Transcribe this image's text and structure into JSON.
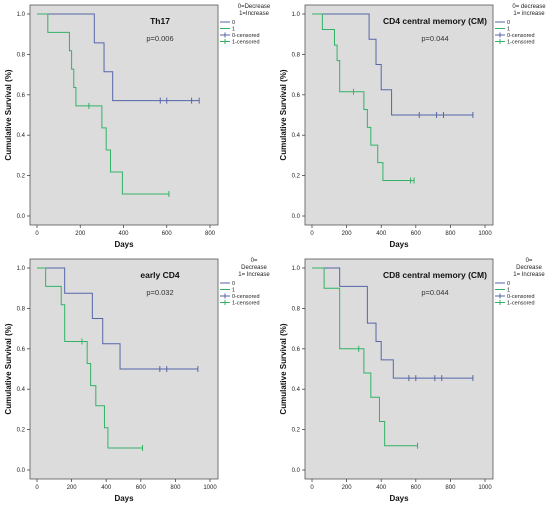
{
  "chart_data": [
    {
      "type": "line",
      "panel": "Th17",
      "title": "Th17",
      "pvalue": "p=0.006",
      "xlabel": "Days",
      "ylabel": "Cumulative Survival (%)",
      "xlim": [
        0,
        800
      ],
      "ylim": [
        0,
        1.0
      ],
      "xticks": [
        "0",
        "200",
        "400",
        "600",
        "800"
      ],
      "yticks": [
        "0.0",
        "0.2",
        "0.4",
        "0.6",
        "0.8",
        "1.0"
      ],
      "legend_title": [
        "0=Decrease",
        "1=Increase"
      ],
      "legend": [
        "0",
        "1",
        "0-censored",
        "1-censored"
      ],
      "series": [
        {
          "name": "0",
          "color": "#5666a8",
          "steps": [
            [
              0,
              1.0
            ],
            [
              265,
              0.857
            ],
            [
              310,
              0.714
            ],
            [
              350,
              0.571
            ],
            [
              750,
              0.571
            ]
          ],
          "censored": [
            [
              570,
              0.571
            ],
            [
              600,
              0.571
            ],
            [
              715,
              0.571
            ],
            [
              750,
              0.571
            ]
          ]
        },
        {
          "name": "1",
          "color": "#33b267",
          "steps": [
            [
              0,
              1.0
            ],
            [
              50,
              0.909
            ],
            [
              150,
              0.818
            ],
            [
              160,
              0.727
            ],
            [
              170,
              0.636
            ],
            [
              180,
              0.545
            ],
            [
              300,
              0.436
            ],
            [
              320,
              0.327
            ],
            [
              340,
              0.218
            ],
            [
              395,
              0.109
            ],
            [
              610,
              0.109
            ]
          ],
          "censored": [
            [
              240,
              0.545
            ],
            [
              610,
              0.109
            ]
          ]
        }
      ]
    },
    {
      "type": "line",
      "panel": "CD4 central memory (CM)",
      "title": "CD4 central memory (CM)",
      "pvalue": "p=0.044",
      "xlabel": "Days",
      "ylabel": "Cumulative Survival (%)",
      "xlim": [
        0,
        1000
      ],
      "ylim": [
        0,
        1.0
      ],
      "xticks": [
        "0",
        "200",
        "400",
        "600",
        "800",
        "1000"
      ],
      "yticks": [
        "0.0",
        "0.2",
        "0.4",
        "0.6",
        "0.8",
        "1.0"
      ],
      "legend_title": [
        "0= decrease",
        "1= increase"
      ],
      "legend": [
        "0",
        "1",
        "0-censored",
        "1-censored"
      ],
      "series": [
        {
          "name": "0",
          "color": "#5666a8",
          "steps": [
            [
              0,
              1.0
            ],
            [
              330,
              0.875
            ],
            [
              370,
              0.75
            ],
            [
              400,
              0.625
            ],
            [
              460,
              0.5
            ],
            [
              930,
              0.5
            ]
          ],
          "censored": [
            [
              620,
              0.5
            ],
            [
              720,
              0.5
            ],
            [
              760,
              0.5
            ],
            [
              930,
              0.5
            ]
          ]
        },
        {
          "name": "1",
          "color": "#33b267",
          "steps": [
            [
              0,
              1.0
            ],
            [
              60,
              0.923
            ],
            [
              130,
              0.846
            ],
            [
              145,
              0.769
            ],
            [
              160,
              0.615
            ],
            [
              300,
              0.527
            ],
            [
              320,
              0.439
            ],
            [
              340,
              0.351
            ],
            [
              380,
              0.264
            ],
            [
              410,
              0.176
            ],
            [
              590,
              0.176
            ]
          ],
          "censored": [
            [
              240,
              0.615
            ],
            [
              570,
              0.176
            ],
            [
              590,
              0.176
            ]
          ]
        }
      ]
    },
    {
      "type": "line",
      "panel": "early CD4",
      "title": "early CD4",
      "pvalue": "p=0.032",
      "xlabel": "Days",
      "ylabel": "Cumulative Survival (%)",
      "xlim": [
        0,
        1000
      ],
      "ylim": [
        0,
        1.0
      ],
      "xticks": [
        "0",
        "200",
        "400",
        "600",
        "800",
        "1000"
      ],
      "yticks": [
        "0.0",
        "0.2",
        "0.4",
        "0.6",
        "0.8",
        "1.0"
      ],
      "legend_title": [
        "0=",
        "Decrease",
        "1= Increase"
      ],
      "legend": [
        "0",
        "1",
        "0-censored",
        "1-censored"
      ],
      "series": [
        {
          "name": "0",
          "color": "#5666a8",
          "steps": [
            [
              0,
              1.0
            ],
            [
              160,
              0.875
            ],
            [
              320,
              0.75
            ],
            [
              380,
              0.625
            ],
            [
              480,
              0.5
            ],
            [
              930,
              0.5
            ]
          ],
          "censored": [
            [
              710,
              0.5
            ],
            [
              750,
              0.5
            ],
            [
              930,
              0.5
            ]
          ]
        },
        {
          "name": "1",
          "color": "#33b267",
          "steps": [
            [
              0,
              1.0
            ],
            [
              50,
              0.909
            ],
            [
              140,
              0.818
            ],
            [
              160,
              0.636
            ],
            [
              290,
              0.527
            ],
            [
              310,
              0.418
            ],
            [
              340,
              0.318
            ],
            [
              390,
              0.209
            ],
            [
              410,
              0.109
            ],
            [
              610,
              0.109
            ]
          ],
          "censored": [
            [
              260,
              0.636
            ],
            [
              610,
              0.109
            ]
          ]
        }
      ]
    },
    {
      "type": "line",
      "panel": "CD8 central memory (CM)",
      "title": "CD8 central memory (CM)",
      "pvalue": "p=0.044",
      "xlabel": "Days",
      "ylabel": "Cumulative Survival (%)",
      "xlim": [
        0,
        1000
      ],
      "ylim": [
        0,
        1.0
      ],
      "xticks": [
        "0",
        "200",
        "400",
        "600",
        "800",
        "1000"
      ],
      "yticks": [
        "0.0",
        "0.2",
        "0.4",
        "0.6",
        "0.8",
        "1.0"
      ],
      "legend_title": [
        "0=",
        "Decrease",
        "1= Increase"
      ],
      "legend": [
        "0",
        "1",
        "0-censored",
        "1-censored"
      ],
      "series": [
        {
          "name": "0",
          "color": "#5666a8",
          "steps": [
            [
              0,
              1.0
            ],
            [
              160,
              0.909
            ],
            [
              320,
              0.727
            ],
            [
              370,
              0.636
            ],
            [
              400,
              0.545
            ],
            [
              470,
              0.455
            ],
            [
              930,
              0.455
            ]
          ],
          "censored": [
            [
              560,
              0.455
            ],
            [
              600,
              0.455
            ],
            [
              710,
              0.455
            ],
            [
              750,
              0.455
            ],
            [
              930,
              0.455
            ]
          ]
        },
        {
          "name": "1",
          "color": "#33b267",
          "steps": [
            [
              0,
              1.0
            ],
            [
              70,
              0.9
            ],
            [
              160,
              0.6
            ],
            [
              300,
              0.48
            ],
            [
              340,
              0.36
            ],
            [
              390,
              0.24
            ],
            [
              420,
              0.12
            ],
            [
              610,
              0.12
            ]
          ],
          "censored": [
            [
              270,
              0.6
            ],
            [
              610,
              0.12
            ]
          ]
        }
      ]
    }
  ]
}
